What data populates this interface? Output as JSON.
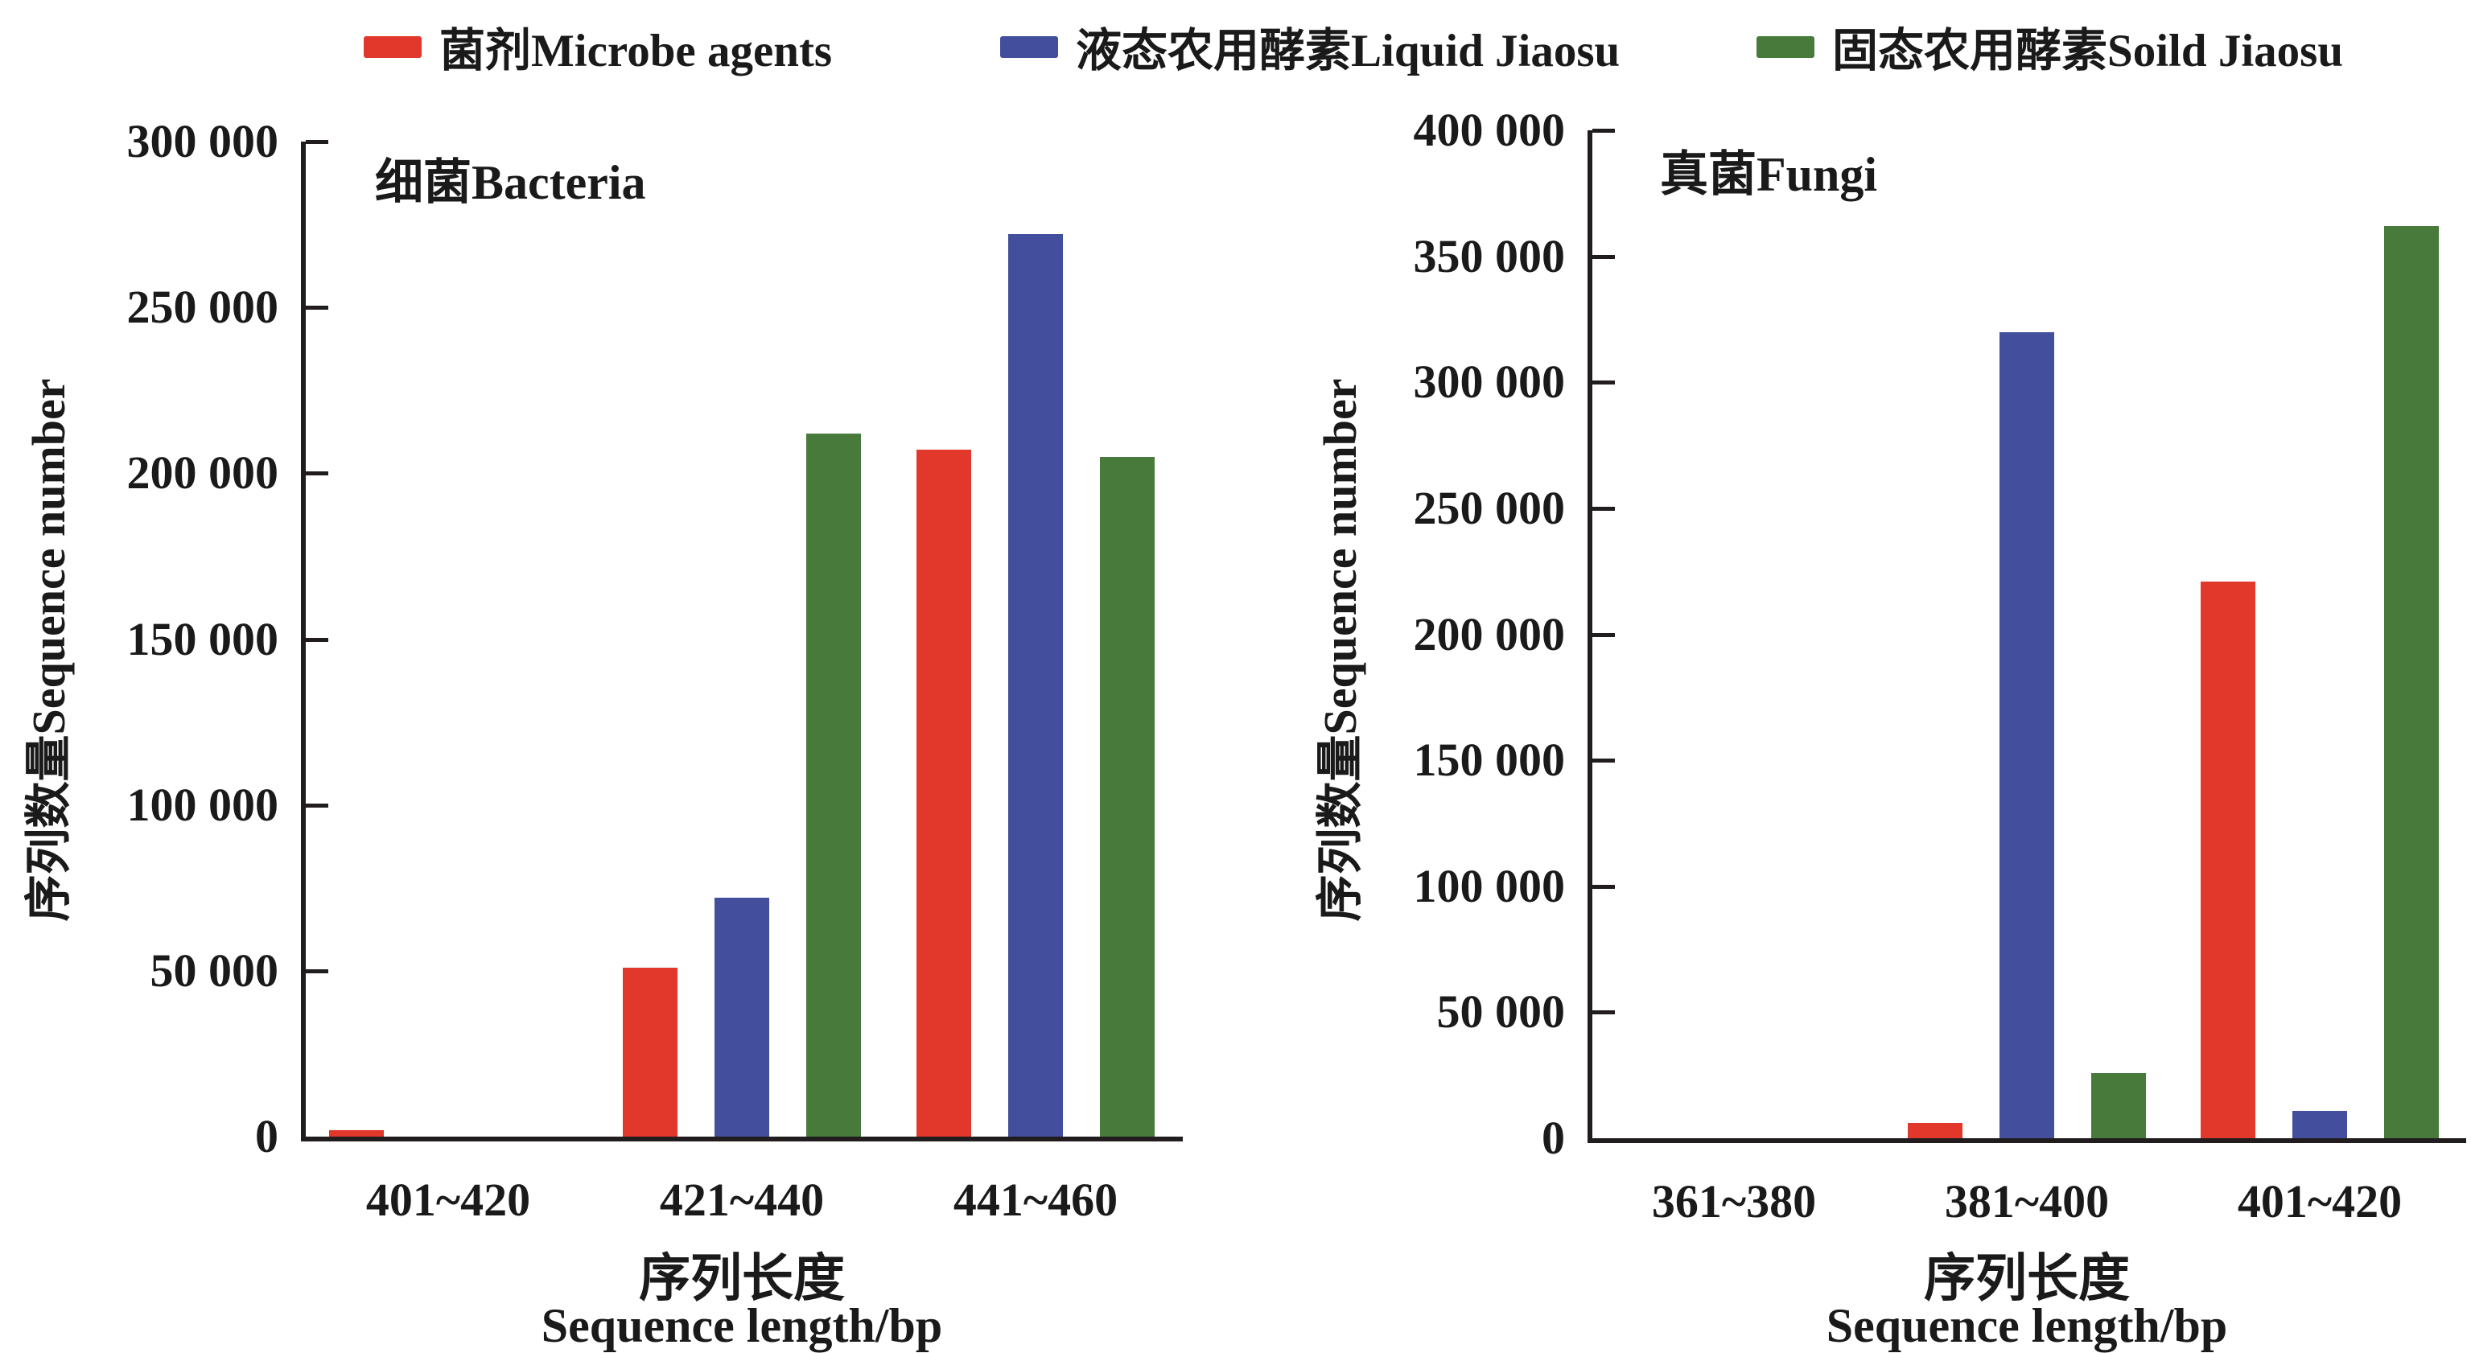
{
  "legend": {
    "items": [
      {
        "label": "菌剂Microbe agents",
        "color": "#e2382c"
      },
      {
        "label": "液态农用酵素Liquid Jiaosu",
        "color": "#434e9c"
      },
      {
        "label": "固态农用酵素Soild Jiaosu",
        "color": "#477a3b"
      }
    ]
  },
  "chart_data": [
    {
      "type": "bar",
      "title": "细菌Bacteria",
      "categories": [
        "401~420",
        "421~440",
        "441~460"
      ],
      "series": [
        {
          "name": "菌剂Microbe agents",
          "color": "#e2382c",
          "values": [
            2000,
            51000,
            207000
          ]
        },
        {
          "name": "液态农用酵素Liquid Jiaosu",
          "color": "#434e9c",
          "values": [
            0,
            72000,
            272000
          ]
        },
        {
          "name": "固态农用酵素Soild Jiaosu",
          "color": "#477a3b",
          "values": [
            0,
            212000,
            205000
          ]
        }
      ],
      "ylabel": "序列数量Sequence number",
      "xlabel_zh": "序列长度",
      "xlabel_en": "Sequence length/bp",
      "ylim": [
        0,
        300000
      ],
      "ytick_step": 50000,
      "grid": false,
      "legend_position": "top"
    },
    {
      "type": "bar",
      "title": "真菌Fungi",
      "categories": [
        "361~380",
        "381~400",
        "401~420"
      ],
      "series": [
        {
          "name": "菌剂Microbe agents",
          "color": "#e2382c",
          "values": [
            0,
            6000,
            221000
          ]
        },
        {
          "name": "液态农用酵素Liquid Jiaosu",
          "color": "#434e9c",
          "values": [
            0,
            320000,
            11000
          ]
        },
        {
          "name": "固态农用酵素Soild Jiaosu",
          "color": "#477a3b",
          "values": [
            0,
            26000,
            362000
          ]
        }
      ],
      "ylabel": "序列数量Sequence number",
      "xlabel_zh": "序列长度",
      "xlabel_en": "Sequence length/bp",
      "ylim": [
        0,
        400000
      ],
      "ytick_step": 50000,
      "grid": false,
      "legend_position": "top"
    }
  ]
}
